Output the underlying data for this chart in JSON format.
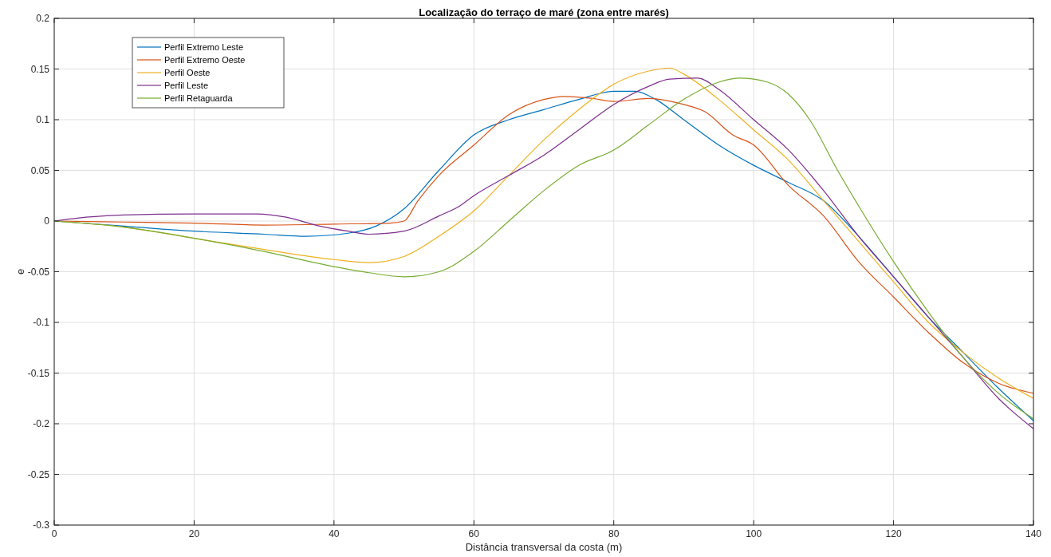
{
  "chart_data": {
    "type": "line",
    "title": "Localização do terraço de maré (zona entre marés)",
    "xlabel": "Distância transversal da costa (m)",
    "ylabel": "e",
    "xlim": [
      0,
      140
    ],
    "ylim": [
      -0.3,
      0.2
    ],
    "xticks": [
      0,
      20,
      40,
      60,
      80,
      100,
      120,
      140
    ],
    "yticks": [
      -0.3,
      -0.25,
      -0.2,
      -0.15,
      -0.1,
      -0.05,
      0,
      0.05,
      0.1,
      0.15,
      0.2
    ],
    "grid": true,
    "legend": "top left",
    "line_style": "solid",
    "series": [
      {
        "name": "Perfil Extremo Leste",
        "color": "#0072bd",
        "x": [
          0,
          10,
          20,
          30,
          36,
          42,
          46,
          50,
          55,
          60,
          65,
          70,
          75,
          80,
          83,
          86,
          90,
          95,
          100,
          105,
          110,
          115,
          120,
          125,
          130,
          135,
          140
        ],
        "values": [
          0,
          -0.005,
          -0.01,
          -0.013,
          -0.015,
          -0.012,
          -0.005,
          0.012,
          0.05,
          0.085,
          0.1,
          0.11,
          0.12,
          0.128,
          0.128,
          0.12,
          0.1,
          0.075,
          0.055,
          0.038,
          0.02,
          -0.015,
          -0.055,
          -0.095,
          -0.13,
          -0.165,
          -0.197
        ]
      },
      {
        "name": "Perfil Extremo Oeste",
        "color": "#d95319",
        "x": [
          0,
          10,
          20,
          30,
          40,
          48,
          50,
          52,
          55,
          60,
          65,
          70,
          73,
          77,
          80,
          85,
          90,
          93,
          97,
          100,
          105,
          110,
          115,
          120,
          125,
          130,
          135,
          140
        ],
        "values": [
          0,
          -0.001,
          -0.002,
          -0.004,
          -0.003,
          -0.002,
          0,
          0.02,
          0.045,
          0.075,
          0.105,
          0.12,
          0.123,
          0.121,
          0.118,
          0.121,
          0.115,
          0.108,
          0.085,
          0.075,
          0.035,
          0.005,
          -0.04,
          -0.075,
          -0.11,
          -0.14,
          -0.16,
          -0.17
        ]
      },
      {
        "name": "Perfil Oeste",
        "color": "#edb120",
        "x": [
          0,
          10,
          20,
          30,
          40,
          45,
          50,
          55,
          60,
          65,
          70,
          75,
          80,
          85,
          88,
          90,
          95,
          100,
          105,
          110,
          115,
          120,
          125,
          130,
          135,
          140
        ],
        "values": [
          0,
          -0.006,
          -0.017,
          -0.028,
          -0.038,
          -0.041,
          -0.035,
          -0.015,
          0.01,
          0.045,
          0.08,
          0.11,
          0.135,
          0.148,
          0.151,
          0.145,
          0.12,
          0.09,
          0.06,
          0.02,
          -0.02,
          -0.06,
          -0.1,
          -0.13,
          -0.155,
          -0.175
        ]
      },
      {
        "name": "Perfil Leste",
        "color": "#7e2f8e",
        "x": [
          0,
          5,
          10,
          20,
          29,
          33,
          38,
          42,
          45,
          50,
          55,
          58,
          60,
          65,
          70,
          75,
          80,
          85,
          88,
          92,
          95,
          100,
          105,
          110,
          115,
          120,
          125,
          130,
          135,
          140
        ],
        "values": [
          0,
          0.004,
          0.006,
          0.007,
          0.007,
          0.004,
          -0.005,
          -0.01,
          -0.013,
          -0.01,
          0.005,
          0.015,
          0.025,
          0.045,
          0.065,
          0.09,
          0.115,
          0.133,
          0.14,
          0.141,
          0.13,
          0.1,
          0.07,
          0.03,
          -0.015,
          -0.055,
          -0.095,
          -0.135,
          -0.175,
          -0.205
        ]
      },
      {
        "name": "Perfil Retaguarda",
        "color": "#77ac30",
        "x": [
          0,
          10,
          20,
          30,
          40,
          45,
          50,
          55,
          60,
          65,
          70,
          75,
          80,
          85,
          90,
          95,
          98,
          102,
          105,
          108,
          112,
          115,
          120,
          125,
          130,
          135,
          140
        ],
        "values": [
          0,
          -0.006,
          -0.017,
          -0.03,
          -0.045,
          -0.051,
          -0.055,
          -0.05,
          -0.03,
          0,
          0.03,
          0.055,
          0.07,
          0.095,
          0.12,
          0.137,
          0.141,
          0.137,
          0.125,
          0.1,
          0.05,
          0.015,
          -0.04,
          -0.09,
          -0.135,
          -0.17,
          -0.195
        ]
      }
    ]
  }
}
